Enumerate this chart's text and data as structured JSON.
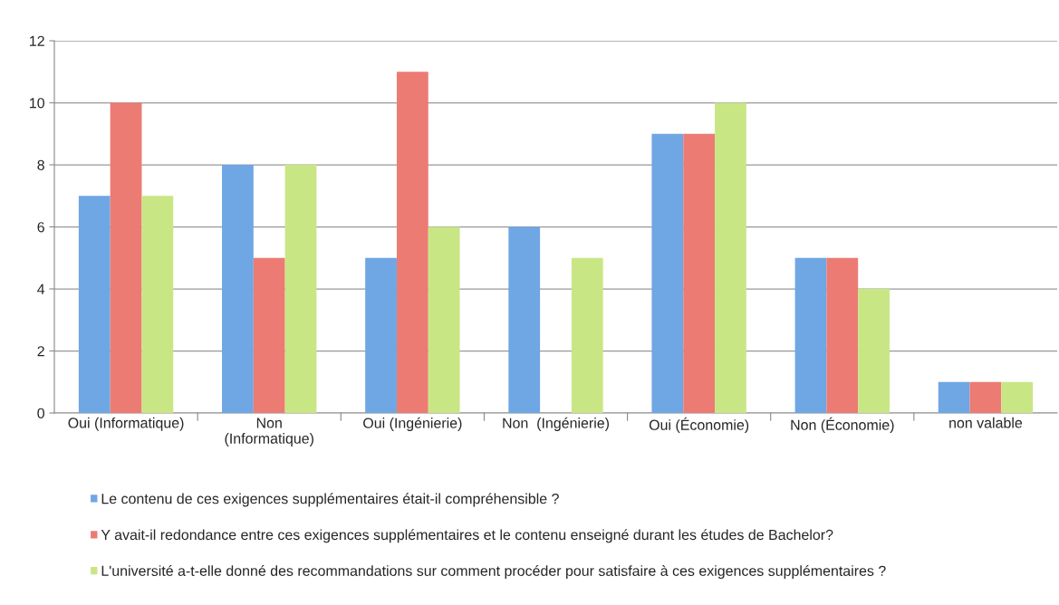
{
  "chart_data": {
    "type": "bar",
    "categories": [
      "Oui (Informatique)",
      "Non\n(Informatique)",
      "Oui (Ingénierie)",
      "Non  (Ingénierie)",
      "Oui (Économie)",
      "Non (Économie)",
      "non valable"
    ],
    "series": [
      {
        "name": "Le contenu de ces exigences supplémentaires était-il compréhensible ?",
        "color": "#6fa6e4",
        "values": [
          7,
          8,
          5,
          6,
          9,
          5,
          1
        ]
      },
      {
        "name": "Y avait-il redondance entre ces exigences supplémentaires et le contenu enseigné durant les études de Bachelor?",
        "color": "#ec7b74",
        "values": [
          10,
          5,
          11,
          null,
          9,
          5,
          1
        ]
      },
      {
        "name": "L'université a-t-elle donné des recommandations sur comment procéder pour satisfaire à ces exigences supplémentaires ?",
        "color": "#c9e685",
        "values": [
          7,
          8,
          6,
          5,
          10,
          4,
          1
        ]
      }
    ],
    "ylim": [
      0,
      12
    ],
    "yticks": [
      0,
      2,
      4,
      6,
      8,
      10,
      12
    ],
    "grid": "y",
    "legend": "bottom"
  }
}
